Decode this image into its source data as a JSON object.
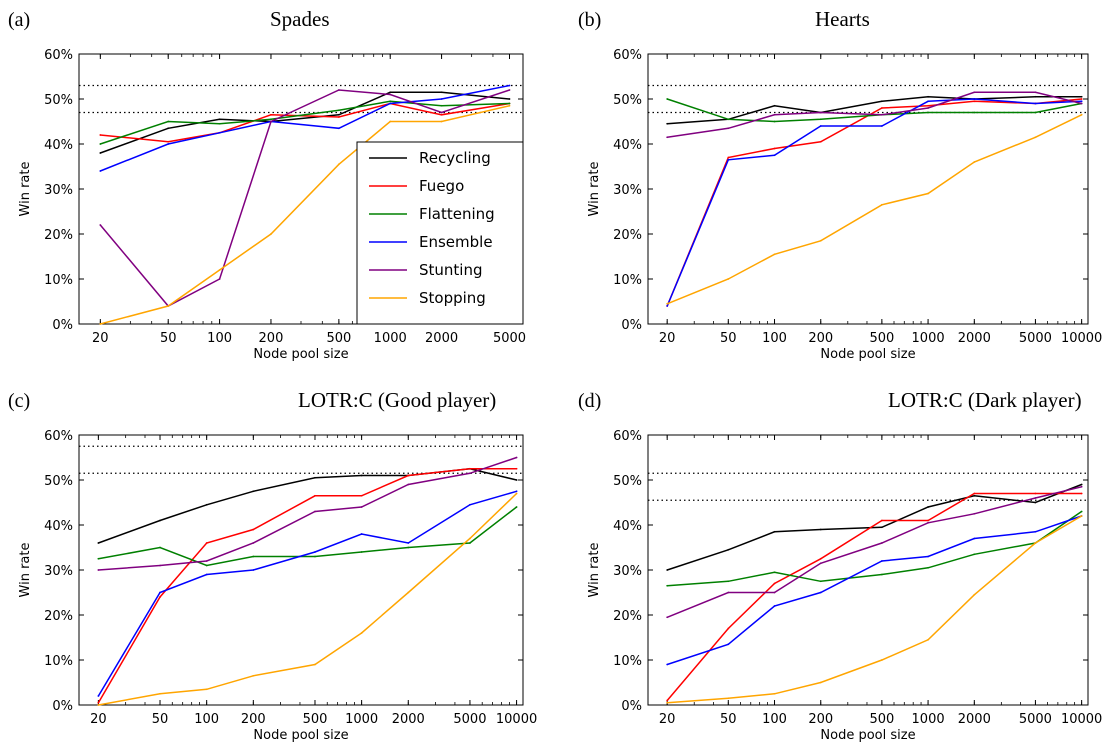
{
  "chart_data": [
    {
      "type": "line",
      "panel_tag": "(a)",
      "title": "Spades",
      "xlabel": "Node pool size",
      "ylabel": "Win rate",
      "xscale": "log",
      "x_ticks": [
        20,
        50,
        100,
        200,
        500,
        1000,
        2000,
        5000
      ],
      "x_tick_labels": [
        "20",
        "50",
        "100",
        "200",
        "500",
        "1000",
        "2000",
        "5000"
      ],
      "xlim": [
        15,
        6000
      ],
      "ylim": [
        0,
        60
      ],
      "y_ticks": [
        0,
        10,
        20,
        30,
        40,
        50,
        60
      ],
      "y_tick_labels": [
        "0%",
        "10%",
        "20%",
        "30%",
        "40%",
        "50%",
        "60%"
      ],
      "reference_lines": [
        53,
        47
      ],
      "legend": "inside-right",
      "x": [
        20,
        50,
        100,
        200,
        500,
        1000,
        2000,
        5000
      ],
      "series": [
        {
          "name": "Recycling",
          "color": "#000000",
          "values": [
            38,
            43.5,
            45.5,
            45,
            46.5,
            51.5,
            51.5,
            50
          ]
        },
        {
          "name": "Fuego",
          "color": "#ff0000",
          "values": [
            42,
            40.5,
            42.5,
            46.5,
            46,
            49,
            46.5,
            49
          ]
        },
        {
          "name": "Flattening",
          "color": "#008000",
          "values": [
            40,
            45,
            44.5,
            45.5,
            47.5,
            49.5,
            48.5,
            49
          ]
        },
        {
          "name": "Ensemble",
          "color": "#0000ff",
          "values": [
            34,
            40,
            42.5,
            45,
            43.5,
            49,
            50,
            53
          ]
        },
        {
          "name": "Stunting",
          "color": "#800080",
          "values": [
            22,
            4,
            10,
            45,
            52,
            51,
            47,
            52
          ]
        },
        {
          "name": "Stopping",
          "color": "#ffa500",
          "values": [
            0,
            4,
            12,
            20,
            35.5,
            45,
            45,
            48.5
          ]
        }
      ]
    },
    {
      "type": "line",
      "panel_tag": "(b)",
      "title": "Hearts",
      "xlabel": "Node pool size",
      "ylabel": "Win rate",
      "xscale": "log",
      "x_ticks": [
        20,
        50,
        100,
        200,
        500,
        1000,
        2000,
        5000,
        10000
      ],
      "x_tick_labels": [
        "20",
        "50",
        "100",
        "200",
        "500",
        "1000",
        "2000",
        "5000",
        "10000"
      ],
      "xlim": [
        15,
        11000
      ],
      "ylim": [
        0,
        60
      ],
      "y_ticks": [
        0,
        10,
        20,
        30,
        40,
        50,
        60
      ],
      "y_tick_labels": [
        "0%",
        "10%",
        "20%",
        "30%",
        "40%",
        "50%",
        "60%"
      ],
      "reference_lines": [
        53,
        47
      ],
      "x": [
        20,
        50,
        100,
        200,
        500,
        1000,
        2000,
        5000,
        10000
      ],
      "series": [
        {
          "name": "Recycling",
          "color": "#000000",
          "values": [
            44.5,
            45.5,
            48.5,
            47,
            49.5,
            50.5,
            50,
            50.5,
            50.5
          ]
        },
        {
          "name": "Fuego",
          "color": "#ff0000",
          "values": [
            4,
            37,
            39,
            40.5,
            48,
            48.5,
            49.5,
            49,
            50
          ]
        },
        {
          "name": "Flattening",
          "color": "#008000",
          "values": [
            50,
            45.5,
            45,
            45.5,
            46.5,
            47,
            47,
            47,
            49
          ]
        },
        {
          "name": "Ensemble",
          "color": "#0000ff",
          "values": [
            4,
            36.5,
            37.5,
            44,
            44,
            49.5,
            50,
            49,
            49.5
          ]
        },
        {
          "name": "Stunting",
          "color": "#800080",
          "values": [
            41.5,
            43.5,
            46.5,
            47,
            46.5,
            48,
            51.5,
            51.5,
            49
          ]
        },
        {
          "name": "Stopping",
          "color": "#ffa500",
          "values": [
            4.5,
            10,
            15.5,
            18.5,
            26.5,
            29,
            36,
            41.5,
            46.5
          ]
        }
      ]
    },
    {
      "type": "line",
      "panel_tag": "(c)",
      "title": "LOTR:C (Good player)",
      "xlabel": "Node pool size",
      "ylabel": "Win rate",
      "xscale": "log",
      "x_ticks": [
        20,
        50,
        100,
        200,
        500,
        1000,
        2000,
        5000,
        10000
      ],
      "x_tick_labels": [
        "20",
        "50",
        "100",
        "200",
        "500",
        "1000",
        "2000",
        "5000",
        "10000"
      ],
      "xlim": [
        15,
        11000
      ],
      "ylim": [
        0,
        60
      ],
      "y_ticks": [
        0,
        10,
        20,
        30,
        40,
        50,
        60
      ],
      "y_tick_labels": [
        "0%",
        "10%",
        "20%",
        "30%",
        "40%",
        "50%",
        "60%"
      ],
      "reference_lines": [
        57.5,
        51.5
      ],
      "x": [
        20,
        50,
        100,
        200,
        500,
        1000,
        2000,
        5000,
        10000
      ],
      "series": [
        {
          "name": "Recycling",
          "color": "#000000",
          "values": [
            36,
            41,
            44.5,
            47.5,
            50.5,
            51,
            51,
            52.5,
            50
          ]
        },
        {
          "name": "Fuego",
          "color": "#ff0000",
          "values": [
            0.5,
            24,
            36,
            39,
            46.5,
            46.5,
            51,
            52.5,
            52.5
          ]
        },
        {
          "name": "Flattening",
          "color": "#008000",
          "values": [
            32.5,
            35,
            31,
            33,
            33,
            34,
            35,
            36,
            44
          ]
        },
        {
          "name": "Ensemble",
          "color": "#0000ff",
          "values": [
            2,
            25,
            29,
            30,
            34,
            38,
            36,
            44.5,
            47.5
          ]
        },
        {
          "name": "Stunting",
          "color": "#800080",
          "values": [
            30,
            31,
            32,
            36,
            43,
            44,
            49,
            51.5,
            55
          ]
        },
        {
          "name": "Stopping",
          "color": "#ffa500",
          "values": [
            0,
            2.5,
            3.5,
            6.5,
            9,
            16,
            25,
            37,
            47
          ]
        }
      ]
    },
    {
      "type": "line",
      "panel_tag": "(d)",
      "title": "LOTR:C (Dark player)",
      "xlabel": "Node pool size",
      "ylabel": "Win rate",
      "xscale": "log",
      "x_ticks": [
        20,
        50,
        100,
        200,
        500,
        1000,
        2000,
        5000,
        10000
      ],
      "x_tick_labels": [
        "20",
        "50",
        "100",
        "200",
        "500",
        "1000",
        "2000",
        "5000",
        "10000"
      ],
      "xlim": [
        15,
        11000
      ],
      "ylim": [
        0,
        60
      ],
      "y_ticks": [
        0,
        10,
        20,
        30,
        40,
        50,
        60
      ],
      "y_tick_labels": [
        "0%",
        "10%",
        "20%",
        "30%",
        "40%",
        "50%",
        "60%"
      ],
      "reference_lines": [
        51.5,
        45.5
      ],
      "x": [
        20,
        50,
        100,
        200,
        500,
        1000,
        2000,
        5000,
        10000
      ],
      "series": [
        {
          "name": "Recycling",
          "color": "#000000",
          "values": [
            30,
            34.5,
            38.5,
            39,
            39.5,
            44,
            46.5,
            45,
            49
          ]
        },
        {
          "name": "Fuego",
          "color": "#ff0000",
          "values": [
            1,
            17,
            27,
            32.5,
            41,
            41,
            47,
            47,
            47
          ]
        },
        {
          "name": "Flattening",
          "color": "#008000",
          "values": [
            26.5,
            27.5,
            29.5,
            27.5,
            29,
            30.5,
            33.5,
            36,
            43
          ]
        },
        {
          "name": "Ensemble",
          "color": "#0000ff",
          "values": [
            9,
            13.5,
            22,
            25,
            32,
            33,
            37,
            38.5,
            42
          ]
        },
        {
          "name": "Stunting",
          "color": "#800080",
          "values": [
            19.5,
            25,
            25,
            31.5,
            36,
            40.5,
            42.5,
            46,
            48.5
          ]
        },
        {
          "name": "Stopping",
          "color": "#ffa500",
          "values": [
            0.5,
            1.5,
            2.5,
            5,
            10,
            14.5,
            24.5,
            36,
            42
          ]
        }
      ]
    }
  ]
}
